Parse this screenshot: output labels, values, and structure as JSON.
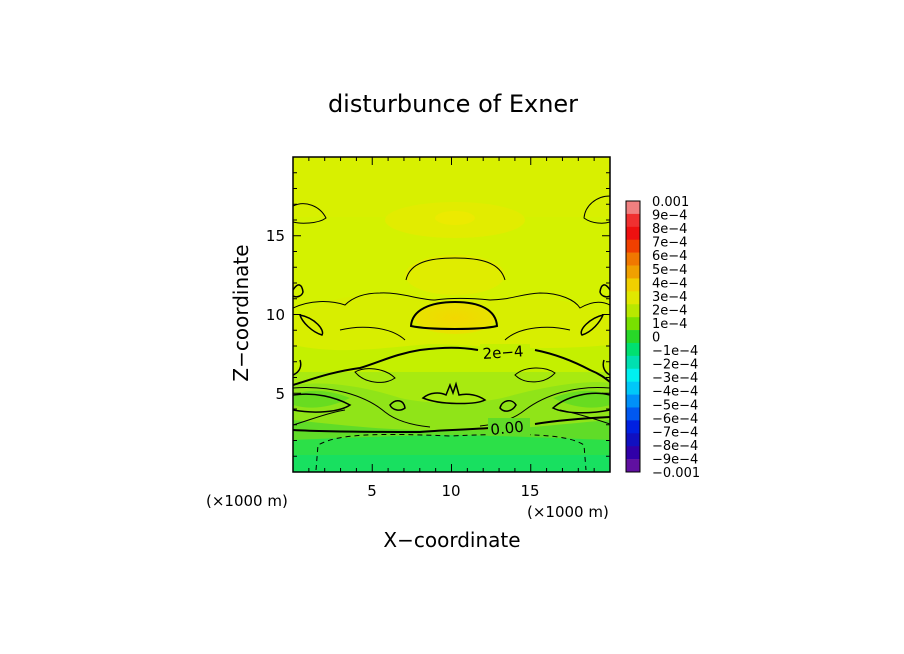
{
  "chart_data": {
    "type": "heatmap",
    "title": "disturbunce of Exner",
    "xlabel": "X−coordinate",
    "ylabel": "Z−coordinate",
    "x_unit": "(×1000 m)",
    "y_unit": "(×1000 m)",
    "xlim": [
      0,
      20
    ],
    "ylim": [
      0,
      20
    ],
    "x_ticks": [
      5,
      10,
      15
    ],
    "y_ticks": [
      5,
      10,
      15
    ],
    "x_tick_labels": [
      "5",
      "10",
      "15"
    ],
    "y_tick_labels": [
      "5",
      "10",
      "15"
    ],
    "contour_labels": [
      "2e−4",
      "0.00"
    ],
    "colorbar": {
      "min": -0.001,
      "max": 0.001,
      "labels": [
        "0.001",
        "9e−4",
        "8e−4",
        "7e−4",
        "6e−4",
        "5e−4",
        "4e−4",
        "3e−4",
        "2e−4",
        "1e−4",
        "0",
        "−1e−4",
        "−2e−4",
        "−3e−4",
        "−4e−4",
        "−5e−4",
        "−6e−4",
        "−7e−4",
        "−8e−4",
        "−9e−4",
        "−0.001"
      ],
      "colors": [
        "#f08080",
        "#f03030",
        "#ee1010",
        "#f04000",
        "#f07800",
        "#f0a000",
        "#f0d000",
        "#e0e800",
        "#b8e800",
        "#78e000",
        "#28d828",
        "#00e070",
        "#00e0b0",
        "#00f0f0",
        "#00c8f8",
        "#0090f8",
        "#0058f0",
        "#0020e0",
        "#1010c0",
        "#3000a8",
        "#6010a0"
      ]
    },
    "grid": false
  }
}
